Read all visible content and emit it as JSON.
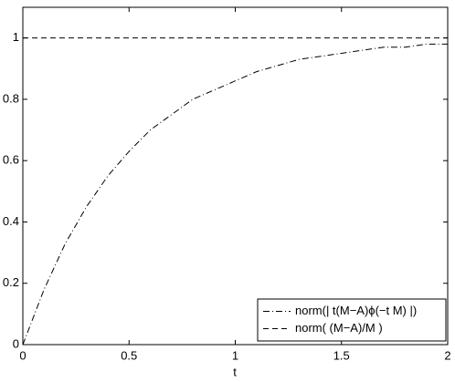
{
  "chart_data": {
    "type": "line",
    "x_label": "t",
    "xlim": [
      0,
      2
    ],
    "xticks": [
      0,
      0.5,
      1,
      1.5,
      2
    ],
    "ylim": [
      0,
      1.1
    ],
    "yticks": [
      0,
      0.2,
      0.4,
      0.6,
      0.8,
      1
    ],
    "grid": false,
    "legend_position": "lower right",
    "series": [
      {
        "name": "norm(| t(M−A)ϕ(−t M) |)",
        "color": "#000000",
        "style": "dash-dot",
        "x": [
          0,
          0.1,
          0.2,
          0.3,
          0.4,
          0.5,
          0.6,
          0.7,
          0.8,
          0.9,
          1,
          1.1,
          1.2,
          1.3,
          1.4,
          1.5,
          1.6,
          1.7,
          1.8,
          1.9,
          2
        ],
        "values": [
          0,
          0.18,
          0.33,
          0.45,
          0.55,
          0.63,
          0.7,
          0.75,
          0.8,
          0.83,
          0.86,
          0.89,
          0.91,
          0.93,
          0.94,
          0.95,
          0.96,
          0.97,
          0.97,
          0.98,
          0.98
        ]
      },
      {
        "name": "norm( (M−A)/M )",
        "color": "#000000",
        "style": "dashed",
        "x": [
          0,
          2
        ],
        "values": [
          1,
          1
        ]
      }
    ]
  }
}
